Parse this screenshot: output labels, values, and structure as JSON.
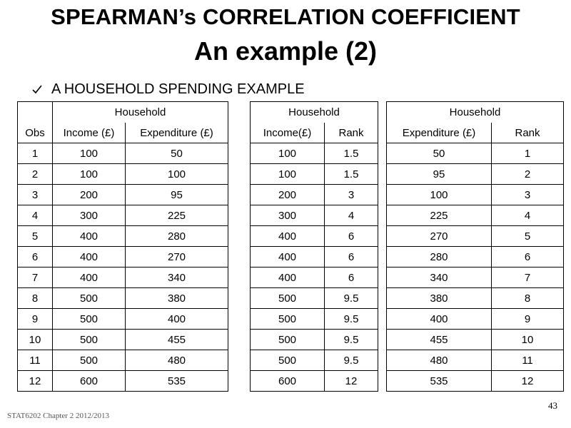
{
  "slide": {
    "title": "SPEARMAN’s CORRELATION COEFFICIENT",
    "subtitle": "An example (2)",
    "bullet": "A HOUSEHOLD SPENDING EXAMPLE",
    "bullet_icon": "checkmark-icon",
    "footer": "STAT6202 Chapter 2 2012/2013",
    "page_number": "43"
  },
  "table1": {
    "group_header": "Household",
    "headers": [
      "Obs",
      "Income (£)",
      "Expenditure (£)"
    ],
    "rows": [
      [
        "1",
        "100",
        "50"
      ],
      [
        "2",
        "100",
        "100"
      ],
      [
        "3",
        "200",
        "95"
      ],
      [
        "4",
        "300",
        "225"
      ],
      [
        "5",
        "400",
        "280"
      ],
      [
        "6",
        "400",
        "270"
      ],
      [
        "7",
        "400",
        "340"
      ],
      [
        "8",
        "500",
        "380"
      ],
      [
        "9",
        "500",
        "400"
      ],
      [
        "10",
        "500",
        "455"
      ],
      [
        "11",
        "500",
        "480"
      ],
      [
        "12",
        "600",
        "535"
      ]
    ]
  },
  "table2": {
    "group_header": "Household",
    "headers": [
      "Income(£)",
      "Rank"
    ],
    "rows": [
      [
        "100",
        "1.5"
      ],
      [
        "100",
        "1.5"
      ],
      [
        "200",
        "3"
      ],
      [
        "300",
        "4"
      ],
      [
        "400",
        "6"
      ],
      [
        "400",
        "6"
      ],
      [
        "400",
        "6"
      ],
      [
        "500",
        "9.5"
      ],
      [
        "500",
        "9.5"
      ],
      [
        "500",
        "9.5"
      ],
      [
        "500",
        "9.5"
      ],
      [
        "600",
        "12"
      ]
    ]
  },
  "table3": {
    "group_header": "Household",
    "headers": [
      "Expenditure (£)",
      "Rank"
    ],
    "rows": [
      [
        "50",
        "1"
      ],
      [
        "95",
        "2"
      ],
      [
        "100",
        "3"
      ],
      [
        "225",
        "4"
      ],
      [
        "270",
        "5"
      ],
      [
        "280",
        "6"
      ],
      [
        "340",
        "7"
      ],
      [
        "380",
        "8"
      ],
      [
        "400",
        "9"
      ],
      [
        "455",
        "10"
      ],
      [
        "480",
        "11"
      ],
      [
        "535",
        "12"
      ]
    ]
  }
}
